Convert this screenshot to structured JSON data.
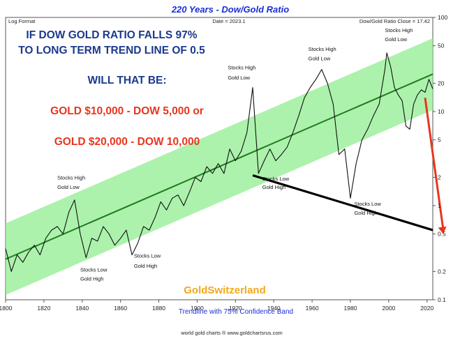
{
  "chart_data": {
    "type": "line",
    "title": "220 Years - Dow/Gold Ratio",
    "scale_label": "Log Format",
    "date_label": "Date = 2023.1",
    "close_label": "Dow/Gold Ratio Close = 17.42",
    "xlim": [
      1800,
      2023
    ],
    "ylim": [
      0.1,
      100
    ],
    "yscale": "log",
    "x_ticks": [
      "1800",
      "1820",
      "1840",
      "1860",
      "1880",
      "1900",
      "1920",
      "1940",
      "1960",
      "1980",
      "2000",
      "2020"
    ],
    "y_ticks": [
      "100",
      "50",
      "20",
      "10",
      "5",
      "2",
      "1",
      "0.5",
      "0.2",
      "0.1"
    ],
    "grid": false,
    "series": [
      {
        "name": "",
        "color": "#111111",
        "x": [
          1800,
          1803,
          1806,
          1809,
          1812,
          1815,
          1818,
          1821,
          1824,
          1827,
          1830,
          1833,
          1836,
          1839,
          1842,
          1845,
          1848,
          1851,
          1854,
          1857,
          1860,
          1863,
          1866,
          1869,
          1872,
          1875,
          1878,
          1881,
          1884,
          1887,
          1890,
          1893,
          1896,
          1899,
          1902,
          1905,
          1908,
          1911,
          1914,
          1917,
          1920,
          1923,
          1926,
          1929,
          1932,
          1935,
          1938,
          1941,
          1944,
          1947,
          1950,
          1953,
          1956,
          1959,
          1962,
          1965,
          1968,
          1971,
          1974,
          1977,
          1980,
          1983,
          1986,
          1989,
          1992,
          1995,
          1998,
          1999,
          2001,
          2003,
          2005,
          2007,
          2009,
          2011,
          2013,
          2015,
          2017,
          2019,
          2021,
          2023
        ],
        "values": [
          0.35,
          0.2,
          0.3,
          0.25,
          0.32,
          0.38,
          0.3,
          0.45,
          0.55,
          0.6,
          0.5,
          0.85,
          1.15,
          0.5,
          0.28,
          0.45,
          0.42,
          0.6,
          0.5,
          0.38,
          0.45,
          0.55,
          0.3,
          0.4,
          0.6,
          0.55,
          0.75,
          1.1,
          0.9,
          1.2,
          1.3,
          1.0,
          1.4,
          2.0,
          1.8,
          2.6,
          2.2,
          2.8,
          2.2,
          4.0,
          3.0,
          3.8,
          6.0,
          18.0,
          2.2,
          3.0,
          4.0,
          3.0,
          3.5,
          4.2,
          6.0,
          9.0,
          14.0,
          18.0,
          22.0,
          28.0,
          20.0,
          12.0,
          3.5,
          4.0,
          1.2,
          2.8,
          5.0,
          6.5,
          9.0,
          12.0,
          28.0,
          42.0,
          30.0,
          18.0,
          15.0,
          13.0,
          7.0,
          6.5,
          12.0,
          15.0,
          17.0,
          16.0,
          22.0,
          17.42
        ]
      }
    ],
    "trendline": {
      "name": "Trendline with 75% Confidence Band",
      "x": [
        1800,
        2023
      ],
      "y": [
        0.27,
        25.0
      ],
      "band_factor": 2.4
    },
    "projection": {
      "color": "#e8351f",
      "x": [
        2019,
        2023
      ],
      "y": [
        14.0,
        0.5
      ]
    },
    "support_line": {
      "color": "#000000",
      "x": [
        1929,
        2023
      ],
      "y": [
        2.1,
        0.55
      ]
    },
    "annotations": [
      {
        "text": "Stocks High",
        "x": 1827,
        "y": 1.9
      },
      {
        "text": "Gold Low",
        "x": 1827,
        "y": 1.5
      },
      {
        "text": "Stocks Low",
        "x": 1839,
        "y": 0.2
      },
      {
        "text": "Gold High",
        "x": 1839,
        "y": 0.16
      },
      {
        "text": "Stocks Low",
        "x": 1867,
        "y": 0.28
      },
      {
        "text": "Gold High",
        "x": 1867,
        "y": 0.22
      },
      {
        "text": "Stocks High",
        "x": 1916,
        "y": 28.0
      },
      {
        "text": "Gold Low",
        "x": 1916,
        "y": 22.0
      },
      {
        "text": "Stocks Low",
        "x": 1934,
        "y": 1.85
      },
      {
        "text": "Gold High",
        "x": 1934,
        "y": 1.5
      },
      {
        "text": "Stocks High",
        "x": 1958,
        "y": 44.0
      },
      {
        "text": "Gold Low",
        "x": 1958,
        "y": 35.0
      },
      {
        "text": "Stocks Low",
        "x": 1982,
        "y": 1.0
      },
      {
        "text": "Gold High",
        "x": 1982,
        "y": 0.8
      },
      {
        "text": "Stocks High",
        "x": 1998,
        "y": 70.0
      },
      {
        "text": "Gold Low",
        "x": 1998,
        "y": 56.0
      }
    ]
  },
  "overlay": {
    "headline_1": "IF DOW GOLD RATIO FALLS 97%",
    "headline_2": "TO LONG TERM TREND LINE  OF 0.5",
    "question": "WILL THAT BE:",
    "scenario_1": "GOLD $10,000 - DOW 5,000 or",
    "scenario_2": "GOLD $20,000 - DOW 10,000",
    "brand": "GoldSwitzerland",
    "band_note": "Trendline with 75% Confidence Band",
    "credit": "world gold charts ® www.goldchartsrus.com",
    "colors": {
      "headline": "#1b3a8c",
      "red": "#e8351f",
      "brand": "#f2a91c",
      "band": "#90ee90",
      "trend": "#1f7a1f"
    }
  }
}
